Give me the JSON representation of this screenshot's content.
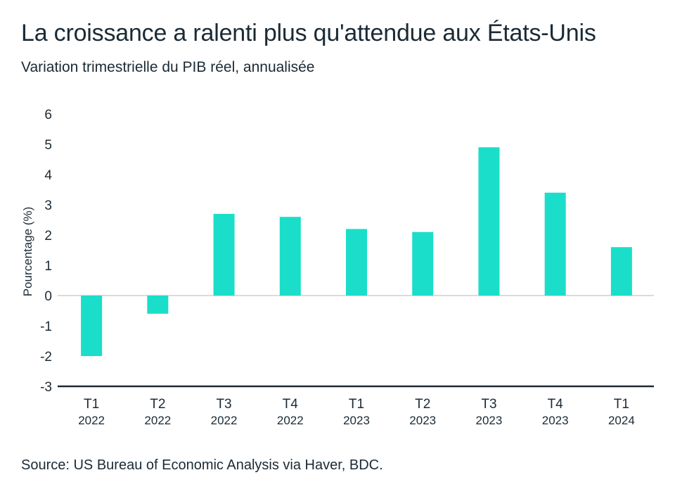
{
  "title": "La croissance a ralenti plus qu'attendue aux États-Unis",
  "subtitle": "Variation trimestrielle du PIB réel, annualisée",
  "source": "Source: US Bureau of Economic Analysis via Haver, BDC.",
  "colors": {
    "bar": "#1adec9",
    "axis": "#1b2a35",
    "zero_line": "#e4d8d2"
  },
  "chart_data": {
    "type": "bar",
    "categories": [
      "T1 2022",
      "T2 2022",
      "T3 2022",
      "T4 2022",
      "T1 2023",
      "T2 2023",
      "T3 2023",
      "T4 2023",
      "T1 2024"
    ],
    "category_labels": [
      {
        "quarter": "T1",
        "year": "2022"
      },
      {
        "quarter": "T2",
        "year": "2022"
      },
      {
        "quarter": "T3",
        "year": "2022"
      },
      {
        "quarter": "T4",
        "year": "2022"
      },
      {
        "quarter": "T1",
        "year": "2023"
      },
      {
        "quarter": "T2",
        "year": "2023"
      },
      {
        "quarter": "T3",
        "year": "2023"
      },
      {
        "quarter": "T4",
        "year": "2023"
      },
      {
        "quarter": "T1",
        "year": "2024"
      }
    ],
    "values": [
      -2.0,
      -0.6,
      2.7,
      2.6,
      2.2,
      2.1,
      4.9,
      3.4,
      1.6
    ],
    "ylabel": "Pourcentage (%)",
    "xlabel": "",
    "ylim": [
      -3,
      6
    ],
    "yticks": [
      "6",
      "5",
      "4",
      "3",
      "2",
      "1",
      "0",
      "-1",
      "-2",
      "-3"
    ],
    "grid": false,
    "legend": "none"
  }
}
